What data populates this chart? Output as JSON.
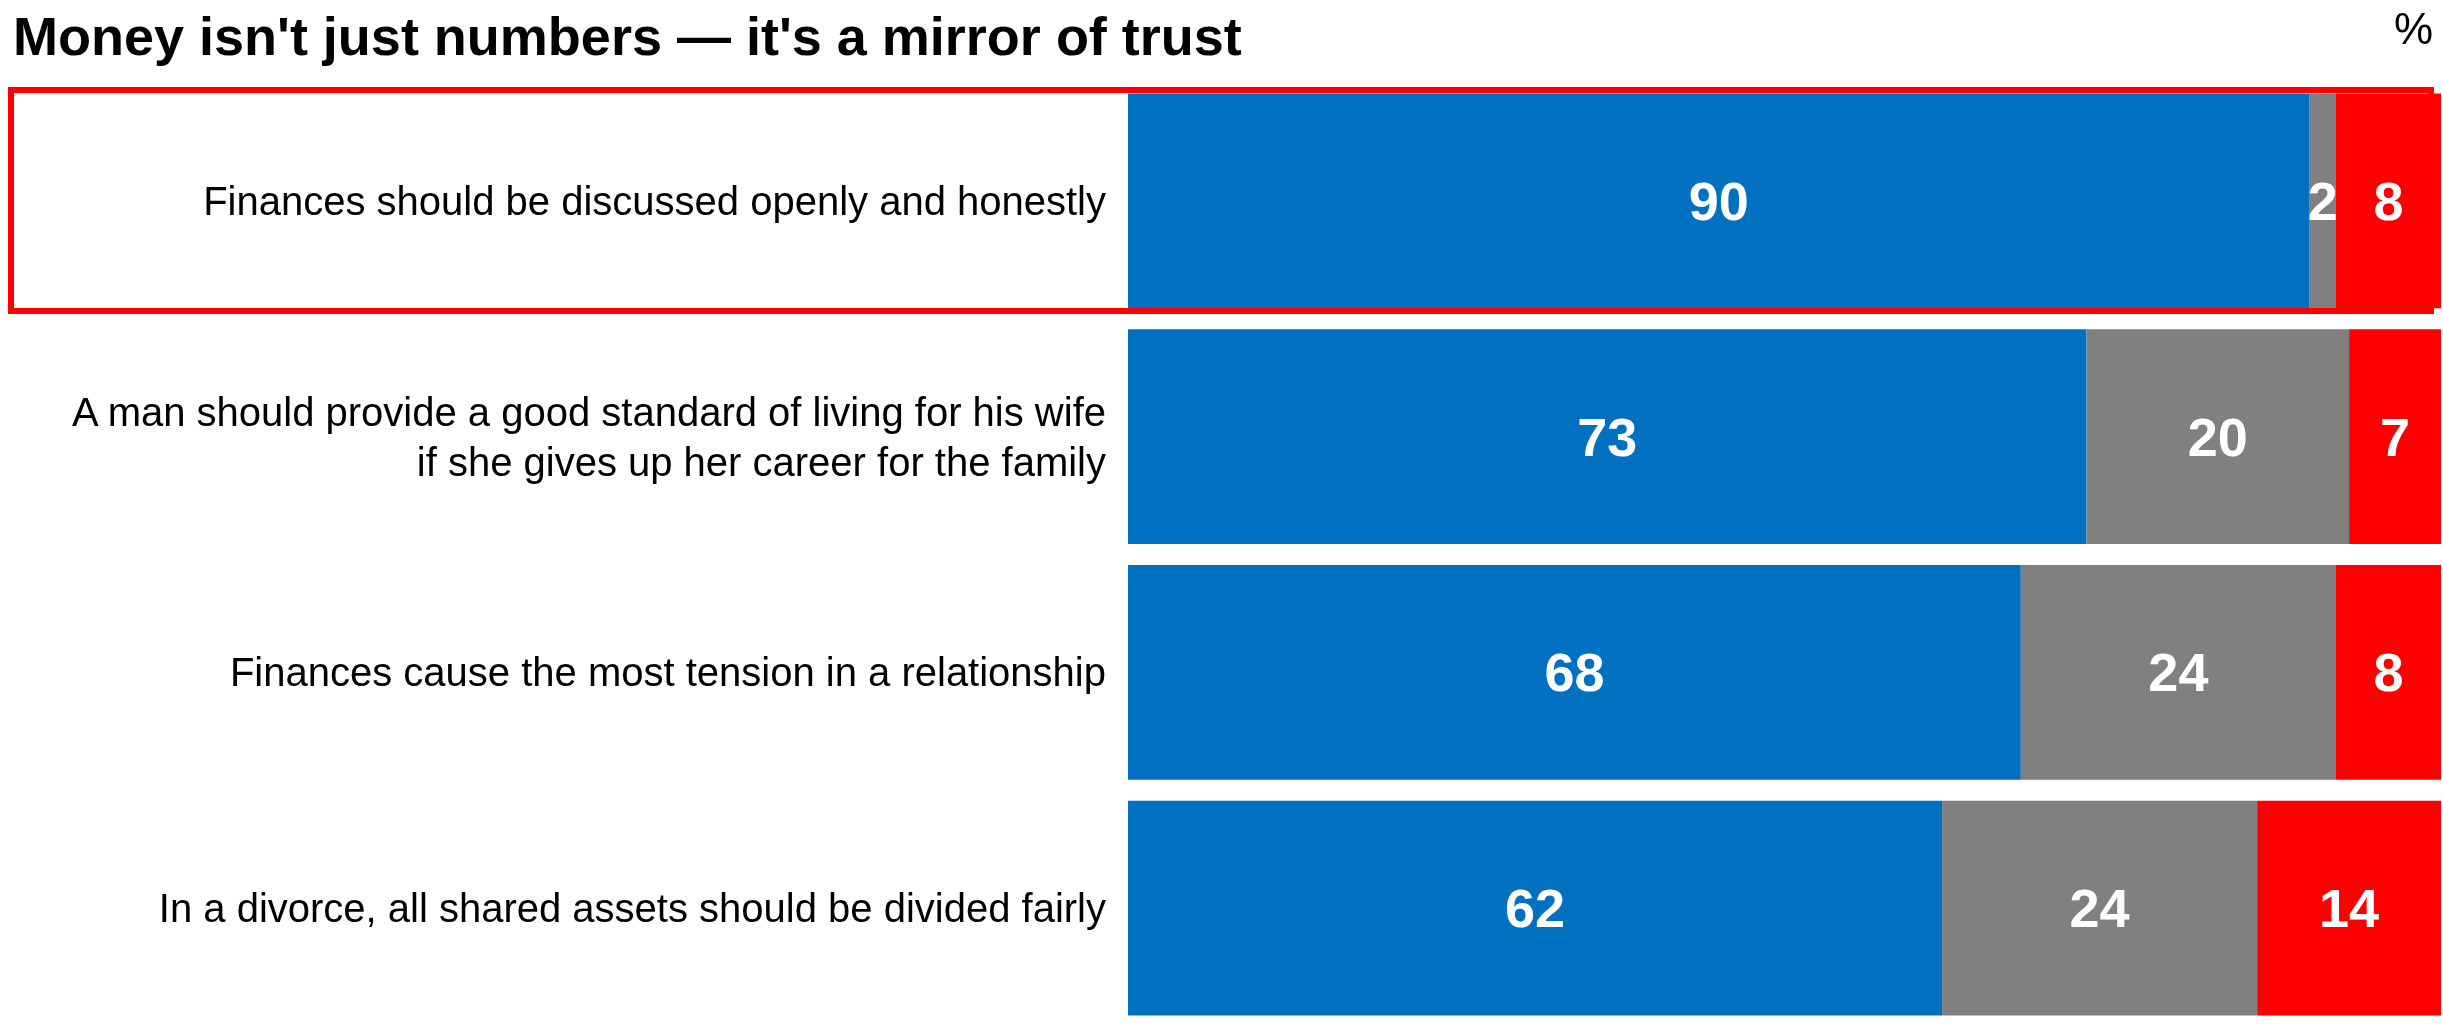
{
  "chart_data": {
    "type": "bar",
    "orientation": "horizontal",
    "stacked": true,
    "title": "Money isn't just numbers — it's a mirror of trust",
    "annotations": [
      "%"
    ],
    "categories": [
      "Finances should be discussed openly and honestly",
      "A man should provide a good standard of living for his wife if she gives up her career for the family",
      "Finances cause the most tension in a relationship",
      "In a divorce, all shared assets should be divided fairly"
    ],
    "series": [
      {
        "color": "#0070c0",
        "values": [
          90,
          73,
          68,
          62
        ]
      },
      {
        "color": "#808080",
        "values": [
          2,
          20,
          24,
          24
        ]
      },
      {
        "color": "#ff0000",
        "values": [
          8,
          7,
          8,
          14
        ]
      }
    ],
    "xlim": [
      0,
      100
    ],
    "data_labels": true,
    "tick_labels": "y",
    "grid": false
  }
}
